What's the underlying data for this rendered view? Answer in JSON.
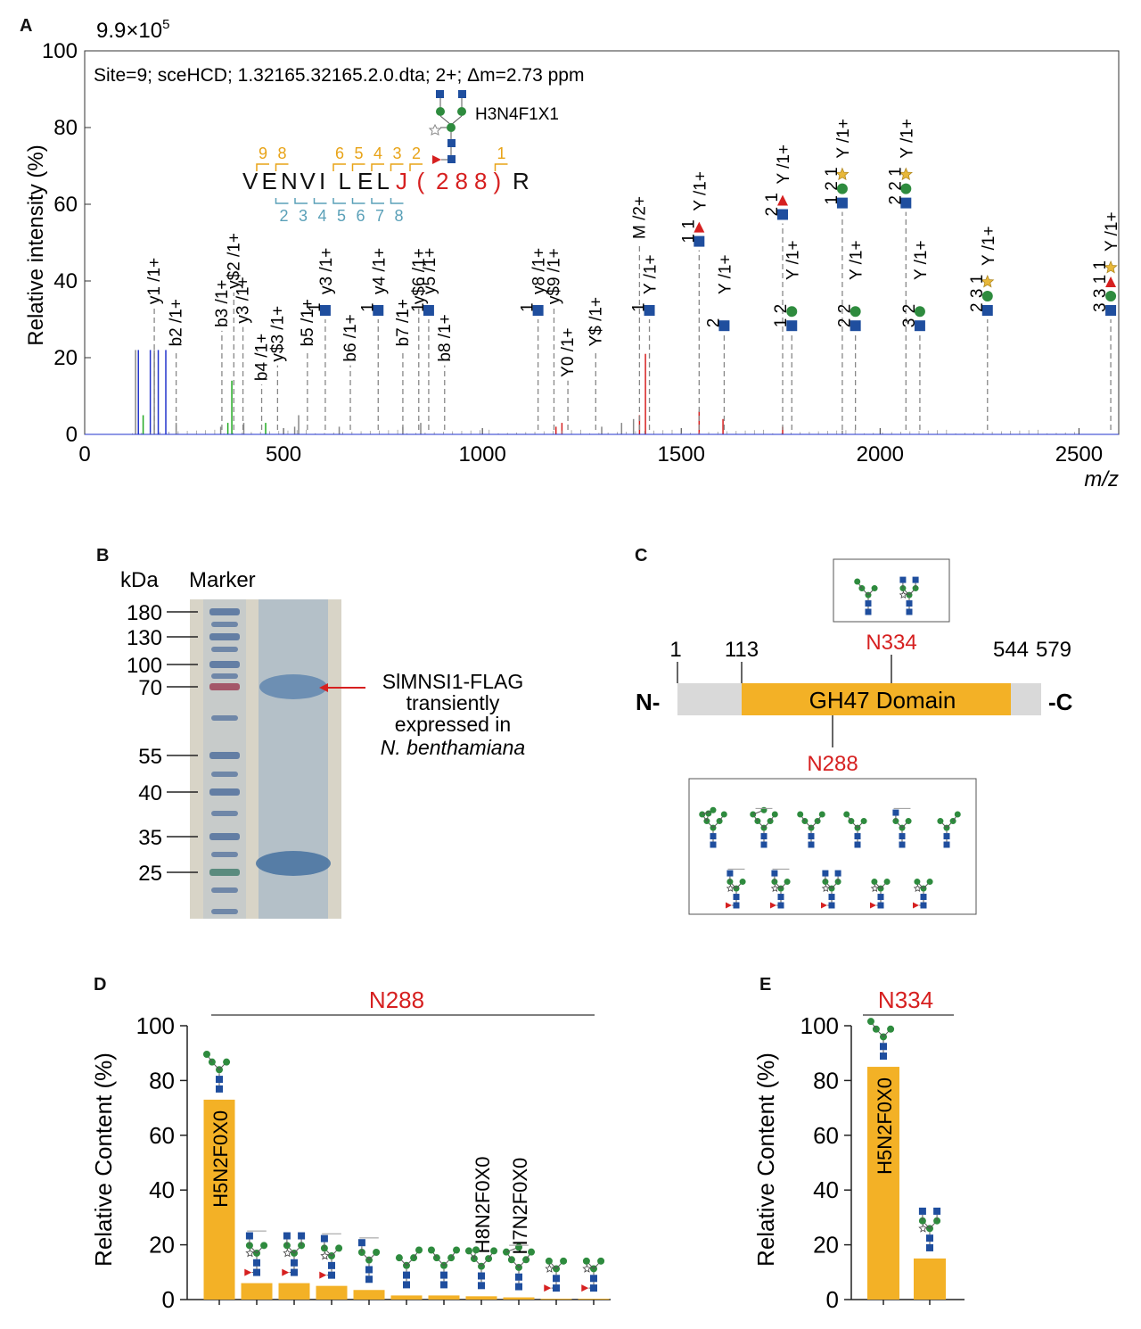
{
  "colors": {
    "bar": "#F3B126",
    "hexnac": "#1F4E9E",
    "hexose": "#2E8B3E",
    "fucose": "#D62020",
    "xylose": "#E8B83A",
    "label_red": "#D62020",
    "b_ion": "#E8A317",
    "y_ion": "#5AA0B8",
    "peak_red": "#D62020",
    "peak_blue": "#2233CC",
    "peak_green": "#22AA22",
    "peak_gray": "#888888",
    "domain_gray": "#D9D9D9"
  },
  "chart_data": [
    {
      "panel": "A",
      "type": "bar",
      "max_intensity_label": "9.9×10",
      "max_intensity_exp": "5",
      "annotation": "Site=9; sceHCD; 1.32165.32165.2.0.dta; 2+; Δm=2.73 ppm",
      "xlabel": "m/z",
      "ylabel": "Relative intensity (%)",
      "xlim": [
        0,
        2600
      ],
      "ylim": [
        0,
        100
      ],
      "xticks": [
        "0",
        "500",
        "1000",
        "1500",
        "2000",
        "2500"
      ],
      "yticks": [
        "0",
        "20",
        "40",
        "60",
        "80",
        "100"
      ],
      "glycan_label": "H3N4F1X1",
      "peptide": {
        "letters": [
          "V",
          "E",
          "N",
          "V",
          "I",
          "L",
          "E",
          "L",
          "J",
          "(",
          "2",
          "8",
          "8",
          ")",
          "R"
        ],
        "b_numbers": [
          "9",
          "8",
          "6",
          "5",
          "4",
          "3",
          "2",
          "1"
        ],
        "y_numbers": [
          "2",
          "3",
          "4",
          "5",
          "6",
          "7",
          "8"
        ]
      },
      "peaks": [
        {
          "mz": 128,
          "y": 22,
          "color": "gray"
        },
        {
          "mz": 135,
          "y": 22,
          "color": "blue"
        },
        {
          "mz": 147,
          "y": 5,
          "color": "green"
        },
        {
          "mz": 165,
          "y": 22,
          "color": "blue"
        },
        {
          "mz": 175,
          "y": 22,
          "color": "gray"
        },
        {
          "mz": 185,
          "y": 22,
          "color": "blue"
        },
        {
          "mz": 204,
          "y": 22,
          "color": "blue"
        },
        {
          "mz": 230,
          "y": 3,
          "color": "gray"
        },
        {
          "mz": 342,
          "y": 2,
          "color": "gray"
        },
        {
          "mz": 360,
          "y": 3,
          "color": "green"
        },
        {
          "mz": 370,
          "y": 14,
          "color": "green"
        },
        {
          "mz": 400,
          "y": 3,
          "color": "gray"
        },
        {
          "mz": 455,
          "y": 3,
          "color": "green"
        },
        {
          "mz": 528,
          "y": 2,
          "color": "gray"
        },
        {
          "mz": 538,
          "y": 5,
          "color": "gray"
        },
        {
          "mz": 640,
          "y": 2,
          "color": "gray"
        },
        {
          "mz": 800,
          "y": 2,
          "color": "gray"
        },
        {
          "mz": 845,
          "y": 3,
          "color": "gray"
        },
        {
          "mz": 1185,
          "y": 2,
          "color": "red"
        },
        {
          "mz": 1200,
          "y": 3,
          "color": "red"
        },
        {
          "mz": 1300,
          "y": 2,
          "color": "gray"
        },
        {
          "mz": 1350,
          "y": 3,
          "color": "gray"
        },
        {
          "mz": 1380,
          "y": 4,
          "color": "gray"
        },
        {
          "mz": 1395,
          "y": 5,
          "color": "red"
        },
        {
          "mz": 1410,
          "y": 21,
          "color": "red"
        },
        {
          "mz": 1545,
          "y": 6,
          "color": "red"
        },
        {
          "mz": 1605,
          "y": 4,
          "color": "red"
        },
        {
          "mz": 1755,
          "y": 2,
          "color": "red"
        },
        {
          "mz": 1905,
          "y": 1,
          "color": "gray"
        }
      ],
      "ion_labels": [
        {
          "mz": 175,
          "lbl": "y1 /1+",
          "h": 33
        },
        {
          "mz": 230,
          "lbl": "b2 /1+",
          "h": 22
        },
        {
          "mz": 345,
          "lbl": "b3 /1+",
          "h": 27
        },
        {
          "mz": 375,
          "lbl": "y$2 /1+",
          "h": 37
        },
        {
          "mz": 398,
          "lbl": "y3 /1+",
          "h": 28
        },
        {
          "mz": 445,
          "lbl": "b4 /1+",
          "h": 13
        },
        {
          "mz": 485,
          "lbl": "y$3 /1+",
          "h": 18
        },
        {
          "mz": 560,
          "lbl": "b5 /1+",
          "h": 22
        },
        {
          "mz": 668,
          "lbl": "b6 /1+",
          "h": 18
        },
        {
          "mz": 800,
          "lbl": "b7 /1+",
          "h": 22
        },
        {
          "mz": 840,
          "lbl": "y$6 /1+",
          "h": 33
        },
        {
          "mz": 905,
          "lbl": "b8 /1+",
          "h": 18
        },
        {
          "mz": 1180,
          "lbl": "y$9 /1+",
          "h": 33
        },
        {
          "mz": 1215,
          "lbl": "Y0 /1+",
          "h": 14
        },
        {
          "mz": 1285,
          "lbl": "Y$ /1+",
          "h": 22
        },
        {
          "mz": 1395,
          "lbl": "M /2+",
          "h": 50
        }
      ],
      "glyco_labels": [
        {
          "mz": 605,
          "num": "1",
          "lbl": "y3 /1+",
          "sym": "S",
          "h": 30
        },
        {
          "mz": 738,
          "num": "1",
          "lbl": "y4 /1+",
          "sym": "S",
          "h": 30
        },
        {
          "mz": 865,
          "num": "1",
          "lbl": "y5 /1+",
          "sym": "S",
          "h": 30
        },
        {
          "mz": 1140,
          "num": "1",
          "lbl": "y8 /1+",
          "sym": "S",
          "h": 30
        },
        {
          "mz": 1420,
          "num": "1",
          "lbl": "Y /1+",
          "sym": "S",
          "h": 30
        },
        {
          "mz": 1545,
          "num": "1 1",
          "lbl": "Y /1+",
          "sym": "SF",
          "h": 48
        },
        {
          "mz": 1608,
          "num": "2",
          "lbl": "Y /1+",
          "sym": "S",
          "h": 26
        },
        {
          "mz": 1755,
          "num": "2 1",
          "lbl": "Y /1+",
          "sym": "SF",
          "h": 55
        },
        {
          "mz": 1778,
          "num": "1 2",
          "lbl": "Y /1+",
          "sym": "SC",
          "h": 26
        },
        {
          "mz": 1905,
          "num": "1 2 1",
          "lbl": "Y /1+",
          "sym": "SCX",
          "h": 58
        },
        {
          "mz": 1938,
          "num": "2 2",
          "lbl": "Y /1+",
          "sym": "SC",
          "h": 26
        },
        {
          "mz": 2065,
          "num": "2 2 1",
          "lbl": "Y /1+",
          "sym": "SCX",
          "h": 58
        },
        {
          "mz": 2100,
          "num": "3 2",
          "lbl": "Y /1+",
          "sym": "SC",
          "h": 26
        },
        {
          "mz": 2270,
          "num": "2 3 1",
          "lbl": "Y /1+",
          "sym": "SCX",
          "h": 30
        },
        {
          "mz": 2580,
          "num": "3 3 1 1",
          "lbl": "Y /1+",
          "sym": "SCFX",
          "h": 30
        }
      ]
    },
    {
      "panel": "D",
      "type": "bar",
      "title": "N288",
      "ylabel": "Relative Content (%)",
      "ylim": [
        0,
        100
      ],
      "yticks": [
        "0",
        "20",
        "40",
        "60",
        "80",
        "100"
      ],
      "bar_text": [
        "H5N2F0X0",
        "",
        "",
        "",
        "",
        "",
        "",
        "H8N2F0X0",
        "H7N2F0X0",
        "",
        ""
      ],
      "values": [
        73,
        6,
        6,
        5,
        3.5,
        1.5,
        1.5,
        1.2,
        0.8,
        0.3,
        0.3
      ]
    },
    {
      "panel": "E",
      "type": "bar",
      "title": "N334",
      "ylabel": "Relative Content (%)",
      "ylim": [
        0,
        100
      ],
      "yticks": [
        "0",
        "20",
        "40",
        "60",
        "80",
        "100"
      ],
      "bar_text": [
        "H5N2F0X0",
        ""
      ],
      "values": [
        85,
        15
      ]
    }
  ],
  "panel_b": {
    "letter": "B",
    "kda_label": "kDa",
    "marker_label": "Marker",
    "markers": [
      "180",
      "130",
      "100",
      "70",
      "55",
      "40",
      "35",
      "25"
    ],
    "annotation": [
      "SlMNSI1-FLAG",
      "transiently",
      "expressed in"
    ],
    "annotation_italic": "N. benthamiana"
  },
  "panel_c": {
    "letter": "C",
    "n_term": "N-",
    "c_term": "-C",
    "positions": [
      "1",
      "113",
      "544",
      "579"
    ],
    "domain": "GH47 Domain",
    "site_top": "N334",
    "site_bottom": "N288"
  },
  "letters": {
    "a": "A",
    "d": "D",
    "e": "E"
  }
}
